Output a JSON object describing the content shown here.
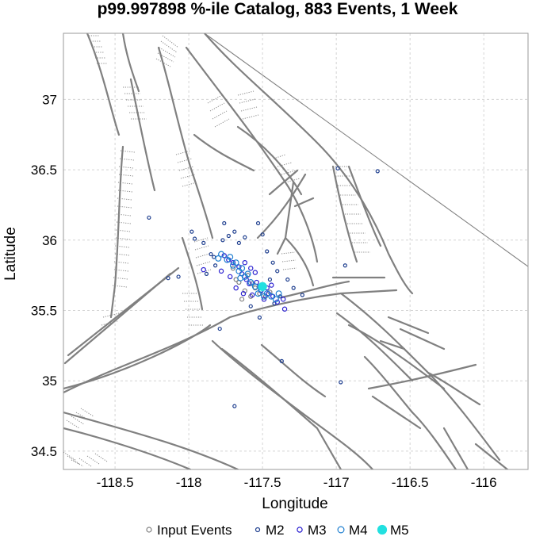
{
  "chart_data": {
    "type": "scatter",
    "title": "p99.997898 %-ile Catalog, 883 Events, 1 Week",
    "xlabel": "Longitude",
    "ylabel": "Latitude",
    "xlim": [
      -118.85,
      -115.7
    ],
    "ylim": [
      34.37,
      37.47
    ],
    "xticks": [
      "-118.5",
      "-118",
      "-117.5",
      "-117",
      "-116.5",
      "-116"
    ],
    "xtick_values": [
      -118.5,
      -118,
      -117.5,
      -117,
      -116.5,
      -116
    ],
    "yticks": [
      "34.5",
      "35",
      "35.5",
      "36",
      "36.5",
      "37"
    ],
    "ytick_values": [
      34.5,
      35,
      35.5,
      36,
      36.5,
      37
    ],
    "grid": true,
    "legend_position": "bottom",
    "legend": [
      {
        "label": "Input Events",
        "color": "#808080",
        "filled": false,
        "size": 2.5
      },
      {
        "label": "M2",
        "color": "#1f3f8f",
        "filled": false,
        "size": 2.0
      },
      {
        "label": "M3",
        "color": "#2a1fd0",
        "filled": false,
        "size": 2.6
      },
      {
        "label": "M4",
        "color": "#1e7fd0",
        "filled": false,
        "size": 3.4
      },
      {
        "label": "M5",
        "color": "#22e0e0",
        "filled": true,
        "size": 5.0
      }
    ],
    "series": [
      {
        "name": "Input Events",
        "points": [
          [
            -117.62,
            35.64
          ],
          [
            -117.58,
            35.6
          ],
          [
            -117.52,
            35.62
          ],
          [
            -117.66,
            35.7
          ],
          [
            -117.55,
            35.66
          ],
          [
            -117.48,
            35.6
          ],
          [
            -117.6,
            35.75
          ],
          [
            -117.7,
            35.8
          ],
          [
            -117.64,
            35.58
          ],
          [
            -117.45,
            35.63
          ],
          [
            -117.68,
            35.72
          ],
          [
            -117.57,
            35.69
          ]
        ]
      },
      {
        "name": "M2",
        "points": [
          [
            -118.27,
            36.16
          ],
          [
            -117.98,
            36.06
          ],
          [
            -117.96,
            36.01
          ],
          [
            -117.9,
            35.98
          ],
          [
            -117.77,
            36.0
          ],
          [
            -117.76,
            36.12
          ],
          [
            -117.73,
            36.03
          ],
          [
            -117.69,
            36.06
          ],
          [
            -117.66,
            35.98
          ],
          [
            -117.62,
            36.02
          ],
          [
            -117.53,
            36.12
          ],
          [
            -117.5,
            36.04
          ],
          [
            -117.47,
            35.92
          ],
          [
            -117.43,
            35.84
          ],
          [
            -117.4,
            35.78
          ],
          [
            -117.33,
            35.72
          ],
          [
            -117.29,
            35.66
          ],
          [
            -117.23,
            35.61
          ],
          [
            -117.82,
            35.82
          ],
          [
            -117.85,
            35.9
          ],
          [
            -118.07,
            35.74
          ],
          [
            -118.14,
            35.73
          ],
          [
            -117.79,
            35.37
          ],
          [
            -117.52,
            35.45
          ],
          [
            -117.37,
            35.14
          ],
          [
            -116.97,
            34.99
          ],
          [
            -117.69,
            34.82
          ],
          [
            -116.72,
            36.49
          ],
          [
            -116.94,
            35.82
          ],
          [
            -116.99,
            36.51
          ],
          [
            -117.83,
            35.88
          ],
          [
            -117.88,
            35.76
          ],
          [
            -117.45,
            35.72
          ],
          [
            -117.38,
            35.6
          ],
          [
            -117.42,
            35.55
          ],
          [
            -117.58,
            35.53
          ]
        ]
      },
      {
        "name": "M3",
        "points": [
          [
            -117.61,
            35.72
          ],
          [
            -117.64,
            35.76
          ],
          [
            -117.52,
            35.67
          ],
          [
            -117.57,
            35.61
          ],
          [
            -117.49,
            35.58
          ],
          [
            -117.46,
            35.62
          ],
          [
            -117.43,
            35.6
          ],
          [
            -117.4,
            35.56
          ],
          [
            -117.36,
            35.58
          ],
          [
            -117.66,
            35.81
          ],
          [
            -117.7,
            35.84
          ],
          [
            -117.73,
            35.86
          ],
          [
            -117.76,
            35.89
          ],
          [
            -117.59,
            35.69
          ],
          [
            -117.54,
            35.7
          ],
          [
            -117.51,
            35.64
          ],
          [
            -117.68,
            35.66
          ],
          [
            -117.63,
            35.62
          ],
          [
            -117.72,
            35.74
          ],
          [
            -117.78,
            35.78
          ],
          [
            -117.47,
            35.66
          ],
          [
            -117.44,
            35.68
          ],
          [
            -117.58,
            35.8
          ],
          [
            -117.55,
            35.77
          ],
          [
            -117.62,
            35.84
          ],
          [
            -117.35,
            35.51
          ],
          [
            -117.9,
            35.79
          ]
        ]
      },
      {
        "name": "M4",
        "points": [
          [
            -117.78,
            35.9
          ],
          [
            -117.74,
            35.86
          ],
          [
            -117.7,
            35.82
          ],
          [
            -117.66,
            35.78
          ],
          [
            -117.62,
            35.74
          ],
          [
            -117.58,
            35.7
          ],
          [
            -117.55,
            35.67
          ],
          [
            -117.51,
            35.65
          ],
          [
            -117.47,
            35.62
          ],
          [
            -117.44,
            35.6
          ],
          [
            -117.41,
            35.58
          ],
          [
            -117.39,
            35.62
          ],
          [
            -117.68,
            35.84
          ],
          [
            -117.6,
            35.76
          ],
          [
            -117.72,
            35.88
          ],
          [
            -117.8,
            35.87
          ],
          [
            -117.65,
            35.73
          ],
          [
            -117.53,
            35.62
          ],
          [
            -117.64,
            35.8
          ],
          [
            -117.49,
            35.6
          ]
        ]
      },
      {
        "name": "M5",
        "points": [
          [
            -117.5,
            35.67
          ]
        ]
      }
    ]
  }
}
